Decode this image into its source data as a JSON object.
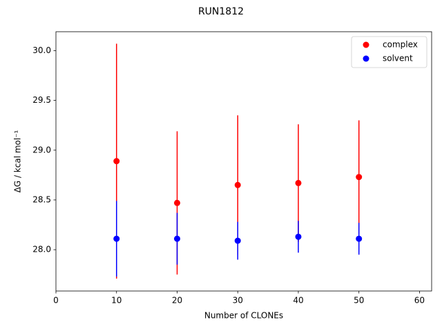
{
  "chart_data": {
    "type": "scatter",
    "title": "RUN1812",
    "x_label": "Number of CLONEs",
    "y_label": "ΔG / kcal mol⁻¹",
    "x": [
      10,
      20,
      30,
      40,
      50
    ],
    "series": [
      {
        "name": "complex",
        "color": "#ff0000",
        "values": [
          28.89,
          28.47,
          28.65,
          28.67,
          28.73
        ],
        "errors": [
          1.18,
          0.72,
          0.7,
          0.59,
          0.57
        ]
      },
      {
        "name": "solvent",
        "color": "#0000ff",
        "values": [
          28.11,
          28.11,
          28.09,
          28.13,
          28.11
        ],
        "errors": [
          0.38,
          0.26,
          0.19,
          0.16,
          0.16
        ]
      }
    ],
    "xlim": [
      0,
      62
    ],
    "ylim": [
      27.585,
      30.19
    ],
    "xticks": [
      0,
      10,
      20,
      30,
      40,
      50,
      60
    ],
    "yticks": [
      {
        "value": 28.0,
        "label": "28.0"
      },
      28.5,
      {
        "value": 29.0,
        "label": "29.0"
      },
      29.5,
      {
        "value": 30.0,
        "label": "30.0"
      }
    ],
    "legend": "upper right",
    "grid": false
  }
}
